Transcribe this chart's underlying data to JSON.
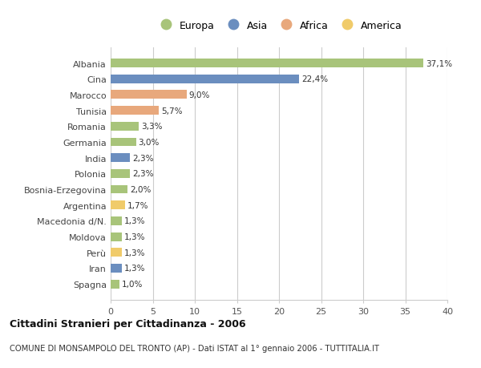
{
  "categories": [
    "Albania",
    "Cina",
    "Marocco",
    "Tunisia",
    "Romania",
    "Germania",
    "India",
    "Polonia",
    "Bosnia-Erzegovina",
    "Argentina",
    "Macedonia d/N.",
    "Moldova",
    "Perù",
    "Iran",
    "Spagna"
  ],
  "values": [
    37.1,
    22.4,
    9.0,
    5.7,
    3.3,
    3.0,
    2.3,
    2.3,
    2.0,
    1.7,
    1.3,
    1.3,
    1.3,
    1.3,
    1.0
  ],
  "labels": [
    "37,1%",
    "22,4%",
    "9,0%",
    "5,7%",
    "3,3%",
    "3,0%",
    "2,3%",
    "2,3%",
    "2,0%",
    "1,7%",
    "1,3%",
    "1,3%",
    "1,3%",
    "1,3%",
    "1,0%"
  ],
  "continents": [
    "Europa",
    "Asia",
    "Africa",
    "Africa",
    "Europa",
    "Europa",
    "Asia",
    "Europa",
    "Europa",
    "America",
    "Europa",
    "Europa",
    "America",
    "Asia",
    "Europa"
  ],
  "continent_colors": {
    "Europa": "#a8c47a",
    "Asia": "#6b8ebf",
    "Africa": "#e8a87c",
    "America": "#f0cb6a"
  },
  "legend_labels": [
    "Europa",
    "Asia",
    "Africa",
    "America"
  ],
  "legend_colors": [
    "#a8c47a",
    "#6b8ebf",
    "#e8a87c",
    "#f0cb6a"
  ],
  "title_bold": "Cittadini Stranieri per Cittadinanza - 2006",
  "subtitle": "COMUNE DI MONSAMPOLO DEL TRONTO (AP) - Dati ISTAT al 1° gennaio 2006 - TUTTITALIA.IT",
  "xlim": [
    0,
    40
  ],
  "xticks": [
    0,
    5,
    10,
    15,
    20,
    25,
    30,
    35,
    40
  ],
  "background_color": "#ffffff",
  "grid_color": "#cccccc",
  "bar_height": 0.55
}
